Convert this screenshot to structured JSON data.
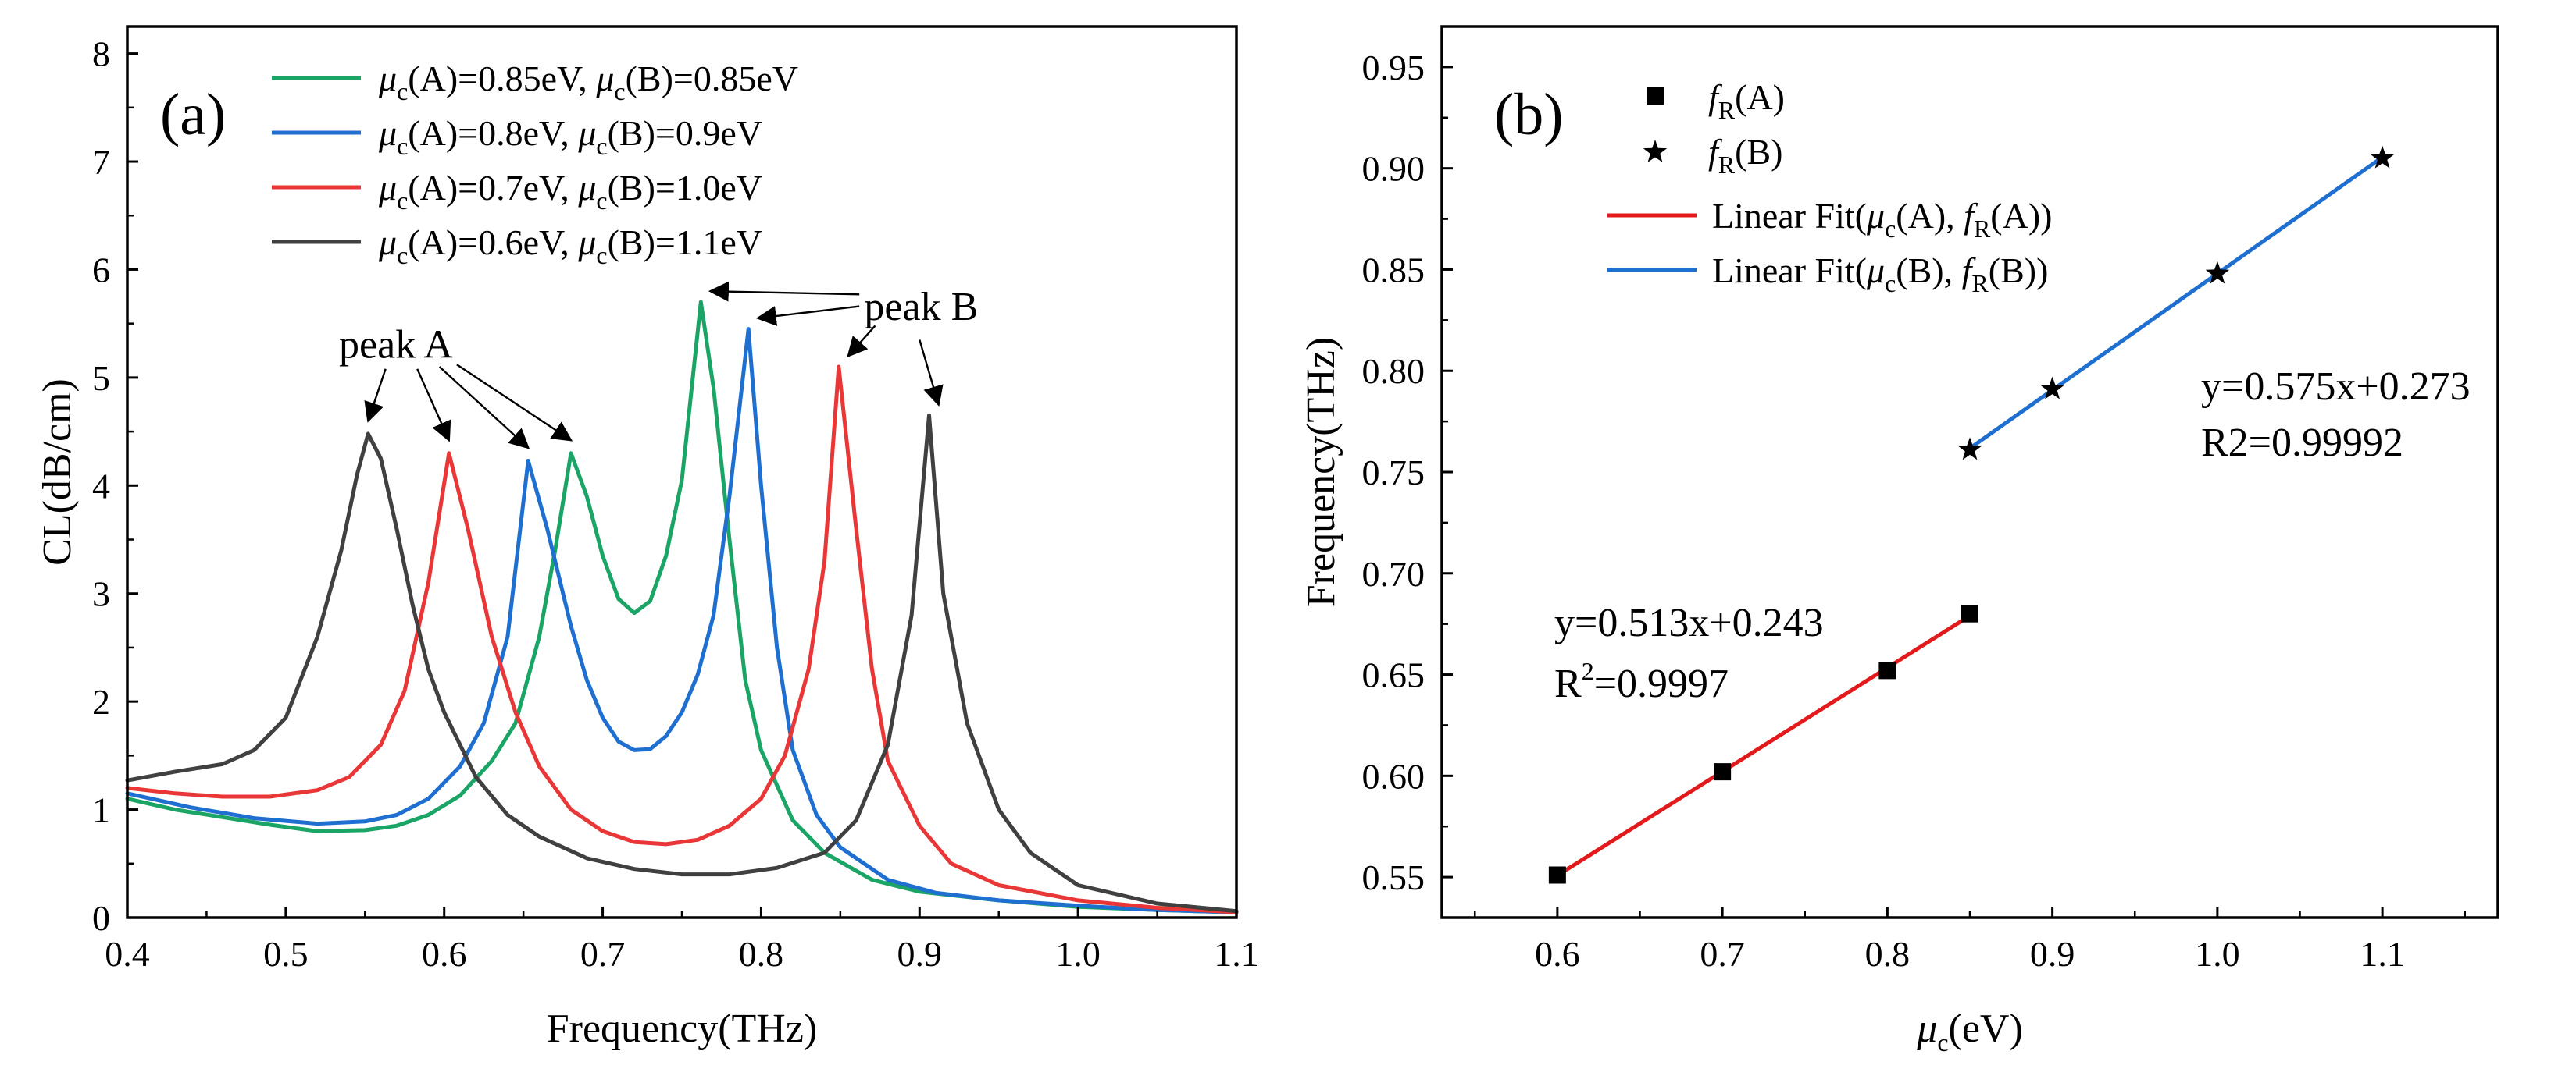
{
  "chart_data": [
    {
      "type": "line",
      "panel_label": "(a)",
      "xlabel": "Frequency(THz)",
      "ylabel": "CL(dB/cm)",
      "xlim": [
        0.4,
        1.1
      ],
      "ylim": [
        0,
        8.25
      ],
      "xticks": [
        0.4,
        0.5,
        0.6,
        0.7,
        0.8,
        0.9,
        1.0,
        1.1
      ],
      "xtick_labels": [
        "0.4",
        "0.5",
        "0.6",
        "0.7",
        "0.8",
        "0.9",
        "1.0",
        "1.1"
      ],
      "yticks": [
        0,
        1,
        2,
        3,
        4,
        5,
        6,
        7,
        8
      ],
      "ytick_labels": [
        "0",
        "1",
        "2",
        "3",
        "4",
        "5",
        "6",
        "7",
        "8"
      ],
      "legend_position": "top-left",
      "series": [
        {
          "name_parts": [
            "μ",
            "c",
            "(A)=0.85eV, ",
            "μ",
            "c",
            "(B)=0.85eV"
          ],
          "color": "#1aa566",
          "points": [
            [
              0.4,
              1.1
            ],
            [
              0.43,
              1.0
            ],
            [
              0.46,
              0.93
            ],
            [
              0.49,
              0.86
            ],
            [
              0.52,
              0.8
            ],
            [
              0.55,
              0.81
            ],
            [
              0.57,
              0.85
            ],
            [
              0.59,
              0.95
            ],
            [
              0.61,
              1.13
            ],
            [
              0.63,
              1.45
            ],
            [
              0.645,
              1.8
            ],
            [
              0.66,
              2.6
            ],
            [
              0.67,
              3.4
            ],
            [
              0.68,
              4.3
            ],
            [
              0.69,
              3.9
            ],
            [
              0.7,
              3.35
            ],
            [
              0.71,
              2.95
            ],
            [
              0.72,
              2.82
            ],
            [
              0.73,
              2.93
            ],
            [
              0.74,
              3.35
            ],
            [
              0.75,
              4.05
            ],
            [
              0.762,
              5.7
            ],
            [
              0.77,
              4.9
            ],
            [
              0.78,
              3.5
            ],
            [
              0.79,
              2.2
            ],
            [
              0.8,
              1.55
            ],
            [
              0.82,
              0.9
            ],
            [
              0.84,
              0.6
            ],
            [
              0.87,
              0.35
            ],
            [
              0.9,
              0.24
            ],
            [
              0.95,
              0.16
            ],
            [
              1.0,
              0.1
            ],
            [
              1.05,
              0.07
            ],
            [
              1.1,
              0.05
            ]
          ]
        },
        {
          "name_parts": [
            "μ",
            "c",
            "(A)=0.8eV, ",
            "μ",
            "c",
            "(B)=0.9eV"
          ],
          "color": "#1f6fd1",
          "points": [
            [
              0.4,
              1.15
            ],
            [
              0.44,
              1.02
            ],
            [
              0.48,
              0.92
            ],
            [
              0.52,
              0.87
            ],
            [
              0.55,
              0.89
            ],
            [
              0.57,
              0.95
            ],
            [
              0.59,
              1.1
            ],
            [
              0.61,
              1.4
            ],
            [
              0.625,
              1.8
            ],
            [
              0.64,
              2.6
            ],
            [
              0.653,
              4.23
            ],
            [
              0.665,
              3.6
            ],
            [
              0.68,
              2.7
            ],
            [
              0.69,
              2.2
            ],
            [
              0.7,
              1.85
            ],
            [
              0.71,
              1.63
            ],
            [
              0.72,
              1.55
            ],
            [
              0.73,
              1.56
            ],
            [
              0.74,
              1.68
            ],
            [
              0.75,
              1.9
            ],
            [
              0.76,
              2.25
            ],
            [
              0.77,
              2.8
            ],
            [
              0.78,
              3.9
            ],
            [
              0.792,
              5.45
            ],
            [
              0.8,
              4.0
            ],
            [
              0.81,
              2.5
            ],
            [
              0.82,
              1.55
            ],
            [
              0.835,
              0.95
            ],
            [
              0.85,
              0.65
            ],
            [
              0.88,
              0.35
            ],
            [
              0.91,
              0.23
            ],
            [
              0.95,
              0.16
            ],
            [
              1.0,
              0.11
            ],
            [
              1.05,
              0.07
            ],
            [
              1.1,
              0.05
            ]
          ]
        },
        {
          "name_parts": [
            "μ",
            "c",
            "(A)=0.7eV, ",
            "μ",
            "c",
            "(B)=1.0eV"
          ],
          "color": "#e93636",
          "points": [
            [
              0.4,
              1.2
            ],
            [
              0.43,
              1.15
            ],
            [
              0.46,
              1.12
            ],
            [
              0.49,
              1.12
            ],
            [
              0.52,
              1.18
            ],
            [
              0.54,
              1.3
            ],
            [
              0.56,
              1.6
            ],
            [
              0.575,
              2.1
            ],
            [
              0.59,
              3.1
            ],
            [
              0.603,
              4.3
            ],
            [
              0.615,
              3.6
            ],
            [
              0.63,
              2.6
            ],
            [
              0.645,
              1.9
            ],
            [
              0.66,
              1.4
            ],
            [
              0.68,
              1.0
            ],
            [
              0.7,
              0.8
            ],
            [
              0.72,
              0.7
            ],
            [
              0.74,
              0.68
            ],
            [
              0.76,
              0.72
            ],
            [
              0.78,
              0.85
            ],
            [
              0.8,
              1.1
            ],
            [
              0.815,
              1.5
            ],
            [
              0.83,
              2.3
            ],
            [
              0.84,
              3.3
            ],
            [
              0.849,
              5.1
            ],
            [
              0.86,
              3.6
            ],
            [
              0.87,
              2.3
            ],
            [
              0.88,
              1.45
            ],
            [
              0.9,
              0.85
            ],
            [
              0.92,
              0.5
            ],
            [
              0.95,
              0.3
            ],
            [
              1.0,
              0.16
            ],
            [
              1.05,
              0.09
            ],
            [
              1.1,
              0.05
            ]
          ]
        },
        {
          "name_parts": [
            "μ",
            "c",
            "(A)=0.6eV, ",
            "μ",
            "c",
            "(B)=1.1eV"
          ],
          "color": "#404040",
          "points": [
            [
              0.4,
              1.27
            ],
            [
              0.43,
              1.35
            ],
            [
              0.46,
              1.42
            ],
            [
              0.48,
              1.55
            ],
            [
              0.5,
              1.85
            ],
            [
              0.52,
              2.6
            ],
            [
              0.535,
              3.4
            ],
            [
              0.545,
              4.1
            ],
            [
              0.552,
              4.48
            ],
            [
              0.56,
              4.25
            ],
            [
              0.57,
              3.6
            ],
            [
              0.58,
              2.9
            ],
            [
              0.59,
              2.3
            ],
            [
              0.6,
              1.9
            ],
            [
              0.62,
              1.3
            ],
            [
              0.64,
              0.95
            ],
            [
              0.66,
              0.75
            ],
            [
              0.69,
              0.55
            ],
            [
              0.72,
              0.45
            ],
            [
              0.75,
              0.4
            ],
            [
              0.78,
              0.4
            ],
            [
              0.81,
              0.46
            ],
            [
              0.84,
              0.6
            ],
            [
              0.86,
              0.9
            ],
            [
              0.88,
              1.6
            ],
            [
              0.895,
              2.8
            ],
            [
              0.906,
              4.65
            ],
            [
              0.915,
              3.0
            ],
            [
              0.93,
              1.8
            ],
            [
              0.95,
              1.0
            ],
            [
              0.97,
              0.6
            ],
            [
              1.0,
              0.3
            ],
            [
              1.05,
              0.13
            ],
            [
              1.1,
              0.06
            ]
          ]
        }
      ],
      "annotations": [
        {
          "text": "peak A",
          "x": 0.577,
          "y": 5.3
        },
        {
          "text": "peak B",
          "x": 0.87,
          "y": 5.65
        }
      ]
    },
    {
      "type": "scatter",
      "panel_label": "(b)",
      "xlabel_parts": [
        "μ",
        "c",
        "(eV)"
      ],
      "ylabel": "Frequency(THz)",
      "xlim": [
        0.53,
        1.17
      ],
      "ylim": [
        0.53,
        0.97
      ],
      "xticks": [
        0.6,
        0.7,
        0.8,
        0.9,
        1.0,
        1.1
      ],
      "xtick_labels": [
        "0.6",
        "0.7",
        "0.8",
        "0.9",
        "1.0",
        "1.1"
      ],
      "yticks": [
        0.55,
        0.6,
        0.65,
        0.7,
        0.75,
        0.8,
        0.85,
        0.9,
        0.95
      ],
      "ytick_labels": [
        "0.55",
        "0.60",
        "0.65",
        "0.70",
        "0.75",
        "0.80",
        "0.85",
        "0.90",
        "0.95"
      ],
      "legend_position": "top-left",
      "series": [
        {
          "name_parts": [
            "f",
            "R",
            "(A)"
          ],
          "marker": "square",
          "x": [
            0.6,
            0.7,
            0.8,
            0.85
          ],
          "y": [
            0.551,
            0.602,
            0.652,
            0.68
          ]
        },
        {
          "name_parts": [
            "f",
            "R",
            "(B)"
          ],
          "marker": "star",
          "x": [
            0.85,
            0.9,
            1.0,
            1.1
          ],
          "y": [
            0.761,
            0.791,
            0.848,
            0.905
          ]
        }
      ],
      "fits": [
        {
          "name_parts": [
            "Linear Fit(",
            "μ",
            "c",
            "(A), ",
            "f",
            "R",
            "(A))"
          ],
          "color": "#e31a1c",
          "slope": 0.513,
          "intercept": 0.243,
          "x_range": [
            0.6,
            0.85
          ],
          "equation": "y=0.513x+0.243",
          "r2_prefix": "R",
          "r2_sup": "2",
          "r2_value": "=0.9997"
        },
        {
          "name_parts": [
            "Linear Fit(",
            "μ",
            "c",
            "(B), ",
            "f",
            "R",
            "(B))"
          ],
          "color": "#1f6fd1",
          "slope": 0.575,
          "intercept": 0.273,
          "x_range": [
            0.85,
            1.1
          ],
          "equation": "y=0.575x+0.273",
          "r2_text": "R2=0.99992"
        }
      ]
    }
  ]
}
